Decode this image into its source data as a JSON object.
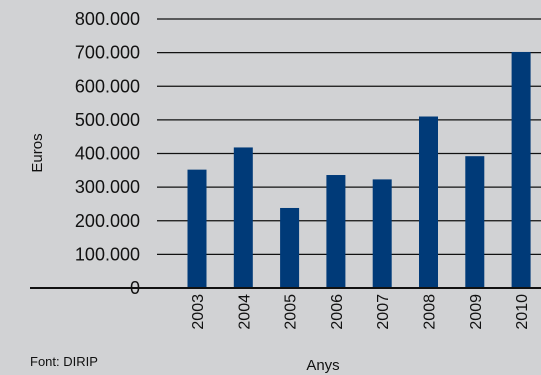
{
  "chart_data": {
    "type": "bar",
    "title": "",
    "xlabel": "Anys",
    "ylabel": "Euros",
    "source": "Font: DIRIP",
    "categories": [
      "2003",
      "2004",
      "2005",
      "2006",
      "2007",
      "2008",
      "2009",
      "2010"
    ],
    "values": [
      352000,
      418000,
      238000,
      336000,
      323000,
      510000,
      392000,
      702000
    ],
    "ylim": [
      0,
      800000
    ],
    "yticks": [
      0,
      100000,
      200000,
      300000,
      400000,
      500000,
      600000,
      700000,
      800000
    ],
    "ytick_labels": [
      "0",
      "100.000",
      "200.000",
      "300.000",
      "400.000",
      "500.000",
      "600.000",
      "700.000",
      "800.000"
    ],
    "grid": true,
    "legend": "none",
    "bar_color": "#003a78",
    "background_color": "#d1d2d4",
    "grid_color": "#111111"
  }
}
